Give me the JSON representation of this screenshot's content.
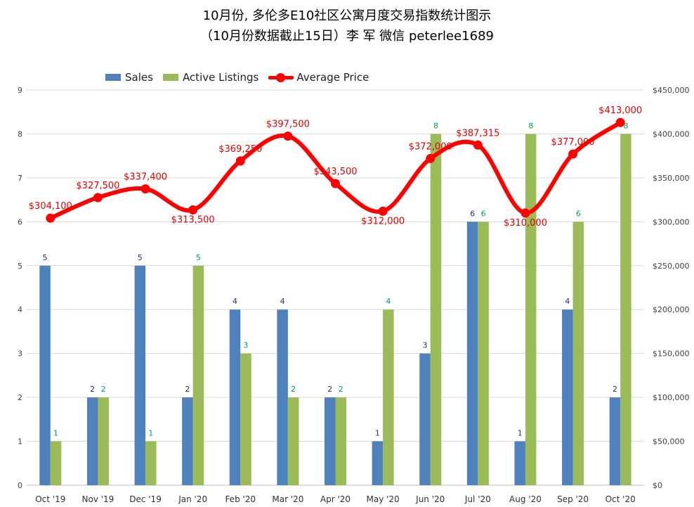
{
  "title_line1": "10月份, 多伦多E10社区公寓月度交易指数统计图示",
  "title_line2": "（10月份数据截止15日）李 军  微信  peterlee1689",
  "legend": {
    "sales": "Sales",
    "active": "Active Listings",
    "price": "Average Price"
  },
  "colors": {
    "sales": "#4f81bd",
    "active": "#9bbb59",
    "price": "#ff0000",
    "sales_label": "#1f3864",
    "active_label": "#00a050",
    "price_label": "#e00000",
    "grid": "#d9d9d9"
  },
  "chart_data": {
    "type": "bar",
    "categories": [
      "Oct '19",
      "Nov '19",
      "Dec '19",
      "Jan '20",
      "Feb '20",
      "Mar '20",
      "Apr '20",
      "May '20",
      "Jun '20",
      "Jul '20",
      "Aug '20",
      "Sep '20",
      "Oct '20"
    ],
    "series": [
      {
        "name": "Sales",
        "type": "bar",
        "axis": "left",
        "values": [
          5,
          2,
          5,
          2,
          4,
          4,
          2,
          1,
          3,
          6,
          1,
          4,
          2
        ]
      },
      {
        "name": "Active Listings",
        "type": "bar",
        "axis": "left",
        "values": [
          1,
          2,
          1,
          5,
          3,
          2,
          2,
          4,
          8,
          6,
          8,
          6,
          8
        ]
      },
      {
        "name": "Average Price",
        "type": "line",
        "axis": "right",
        "values": [
          304100,
          327500,
          337400,
          313500,
          369250,
          397500,
          343500,
          312000,
          372000,
          387315,
          310000,
          377000,
          413000
        ]
      }
    ],
    "price_labels": [
      "$304,100",
      "$327,500",
      "$337,400",
      "$313,500",
      "$369,250",
      "$397,500",
      "$343,500",
      "$312,000",
      "$372,000",
      "$387,315",
      "$310,000",
      "$377,000",
      "$413,000"
    ],
    "left_axis": {
      "ylim": [
        0,
        9
      ],
      "ticks": [
        "0",
        "1",
        "2",
        "3",
        "4",
        "5",
        "6",
        "7",
        "8",
        "9"
      ]
    },
    "right_axis": {
      "ylim": [
        0,
        450000
      ],
      "ticks": [
        "$0",
        "$50,000",
        "$100,000",
        "$150,000",
        "$200,000",
        "$250,000",
        "$300,000",
        "$350,000",
        "$400,000",
        "$450,000"
      ]
    },
    "grid": true,
    "legend_position": "top-left"
  }
}
